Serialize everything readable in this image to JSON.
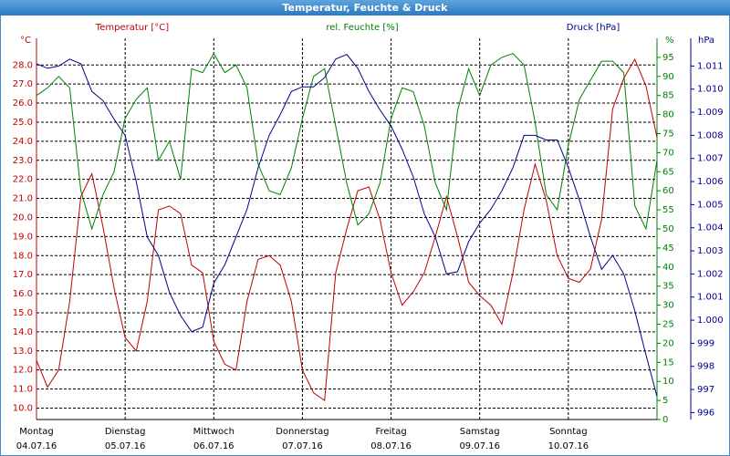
{
  "chart_data": {
    "type": "line",
    "title": "Temperatur, Feuchte & Druck",
    "y_unit": "°C",
    "y2_unit": "%",
    "y3_unit": "hPa",
    "days": [
      {
        "weekday": "Montag",
        "date": "04.07.16"
      },
      {
        "weekday": "Dienstag",
        "date": "05.07.16"
      },
      {
        "weekday": "Mittwoch",
        "date": "06.07.16"
      },
      {
        "weekday": "Donnerstag",
        "date": "07.07.16"
      },
      {
        "weekday": "Freitag",
        "date": "08.07.16"
      },
      {
        "weekday": "Samstag",
        "date": "09.07.16"
      },
      {
        "weekday": "Sonntag",
        "date": "10.07.16"
      }
    ],
    "ylim": [
      9.4,
      29.4
    ],
    "yticks": [
      {
        "value": 10,
        "label": "10.0"
      },
      {
        "value": 11,
        "label": "11.0"
      },
      {
        "value": 12,
        "label": "12.0"
      },
      {
        "value": 13,
        "label": "13.0"
      },
      {
        "value": 14,
        "label": "14.0"
      },
      {
        "value": 15,
        "label": "15.0"
      },
      {
        "value": 16,
        "label": "16.0"
      },
      {
        "value": 17,
        "label": "17.0"
      },
      {
        "value": 18,
        "label": "18.0"
      },
      {
        "value": 19,
        "label": "19.0"
      },
      {
        "value": 20,
        "label": "20.0"
      },
      {
        "value": 21,
        "label": "21.0"
      },
      {
        "value": 22,
        "label": "22.0"
      },
      {
        "value": 23,
        "label": "23.0"
      },
      {
        "value": 24,
        "label": "24.0"
      },
      {
        "value": 25,
        "label": "25.0"
      },
      {
        "value": 26,
        "label": "26.0"
      },
      {
        "value": 27,
        "label": "27.0"
      },
      {
        "value": 28,
        "label": "28.0"
      }
    ],
    "y2lim": [
      0,
      100
    ],
    "y2ticks": [
      0,
      5,
      10,
      15,
      20,
      25,
      30,
      35,
      40,
      45,
      50,
      55,
      60,
      65,
      70,
      75,
      80,
      85,
      90,
      95
    ],
    "y3lim": [
      995.7,
      1012.2
    ],
    "y3ticks": [
      996,
      997,
      998,
      999,
      {
        "value": 1000,
        "label": "1.000"
      },
      {
        "value": 1001,
        "label": "1.001"
      },
      {
        "value": 1002,
        "label": "1.002"
      },
      {
        "value": 1003,
        "label": "1.003"
      },
      {
        "value": 1004,
        "label": "1.004"
      },
      {
        "value": 1005,
        "label": "1.005"
      },
      {
        "value": 1006,
        "label": "1.006"
      },
      {
        "value": 1007,
        "label": "1.007"
      },
      {
        "value": 1008,
        "label": "1.008"
      },
      {
        "value": 1009,
        "label": "1.009"
      },
      {
        "value": 1010,
        "label": "1.010"
      },
      {
        "value": 1011,
        "label": "1.011"
      }
    ],
    "grid": true,
    "series": [
      {
        "name": "Temperatur [°C]",
        "color": "#c00000",
        "axis": "y",
        "values": [
          12.5,
          11.1,
          12.0,
          15.6,
          21.1,
          22.3,
          19.5,
          16.3,
          13.7,
          13.0,
          15.6,
          20.4,
          20.6,
          20.2,
          17.5,
          17.1,
          13.5,
          12.3,
          12.0,
          15.6,
          17.8,
          18.0,
          17.5,
          15.6,
          12.0,
          10.8,
          10.4,
          17.1,
          19.4,
          21.4,
          21.6,
          19.9,
          17.1,
          15.4,
          16.1,
          17.1,
          19.0,
          21.1,
          19.0,
          16.6,
          15.9,
          15.4,
          14.4,
          17.1,
          20.4,
          22.8,
          20.9,
          18.0,
          16.8,
          16.6,
          17.3,
          19.9,
          25.7,
          27.3,
          28.3,
          26.9,
          24.2
        ]
      },
      {
        "name": "rel. Feuchte [%]",
        "color": "#008000",
        "axis": "y2",
        "values": [
          85,
          87,
          90,
          87,
          60,
          50,
          59,
          65,
          79,
          84,
          87,
          68,
          73,
          63,
          92,
          91,
          96,
          91,
          93,
          87,
          67,
          60,
          59,
          66,
          79,
          90,
          92,
          77,
          62,
          51,
          54,
          62,
          79,
          87,
          86,
          77,
          62,
          55,
          81,
          92,
          85,
          93,
          95,
          96,
          93,
          78,
          59,
          55,
          72,
          84,
          89,
          94,
          94,
          91,
          56,
          50,
          68
        ]
      },
      {
        "name": "Druck [hPa]",
        "color": "#00008b",
        "axis": "y3",
        "values": [
          1011.1,
          1010.9,
          1011.0,
          1011.3,
          1011.1,
          1009.9,
          1009.5,
          1008.7,
          1008.0,
          1006.0,
          1003.6,
          1002.8,
          1001.2,
          1000.2,
          999.5,
          999.7,
          1001.6,
          1002.4,
          1003.6,
          1004.8,
          1006.6,
          1008.0,
          1008.9,
          1009.9,
          1010.1,
          1010.1,
          1010.5,
          1011.3,
          1011.5,
          1010.9,
          1009.9,
          1009.1,
          1008.4,
          1007.4,
          1006.2,
          1004.6,
          1003.6,
          1002.0,
          1002.1,
          1003.4,
          1004.2,
          1004.8,
          1005.6,
          1006.6,
          1008.0,
          1008.0,
          1007.8,
          1007.8,
          1006.6,
          1005.2,
          1003.6,
          1002.2,
          1002.8,
          1002.0,
          1000.4,
          998.5,
          996.7
        ]
      }
    ]
  }
}
